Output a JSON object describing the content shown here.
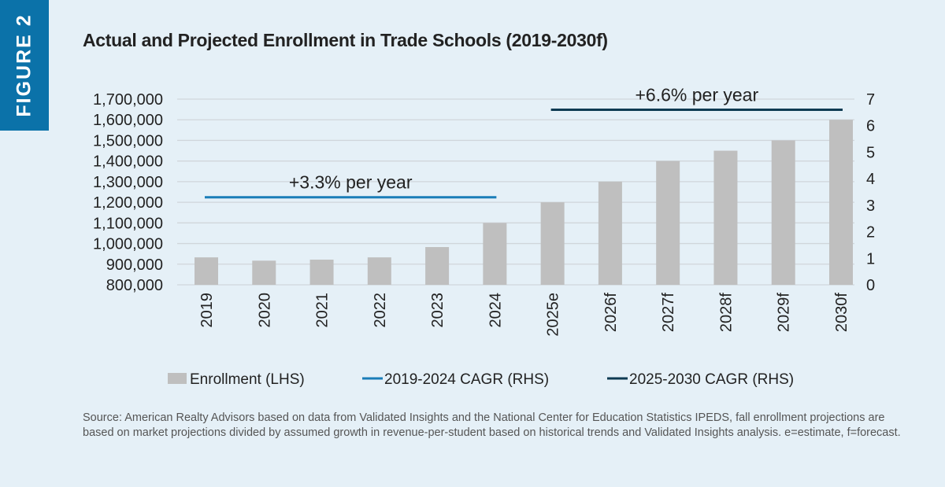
{
  "figure_label": "FIGURE 2",
  "chart_data": {
    "type": "bar",
    "title": "Actual and Projected Enrollment in Trade Schools (2019-2030f)",
    "categories": [
      "2019",
      "2020",
      "2021",
      "2022",
      "2023",
      "2024",
      "2025e",
      "2026f",
      "2027f",
      "2028f",
      "2029f",
      "2030f"
    ],
    "series": [
      {
        "name": "Enrollment (LHS)",
        "type": "bar",
        "axis": "left",
        "color": "#bfbfbf",
        "values": [
          933000,
          917000,
          922000,
          933000,
          983000,
          1100000,
          1200000,
          1300000,
          1400000,
          1450000,
          1500000,
          1600000
        ]
      },
      {
        "name": "2019-2024 CAGR (RHS)",
        "type": "line",
        "axis": "right",
        "color": "#1a7db8",
        "from": "2019",
        "to": "2024",
        "value": 3.3,
        "label": "+3.3% per year"
      },
      {
        "name": "2025-2030 CAGR (RHS)",
        "type": "line",
        "axis": "right",
        "color": "#0d3a52",
        "from": "2025e",
        "to": "2030f",
        "value": 6.6,
        "label": "+6.6% per year"
      }
    ],
    "left_axis": {
      "ylim": [
        800000,
        1700000
      ],
      "ticks": [
        "800,000",
        "900,000",
        "1,000,000",
        "1,100,000",
        "1,200,000",
        "1,300,000",
        "1,400,000",
        "1,500,000",
        "1,600,000",
        "1,700,000"
      ]
    },
    "right_axis": {
      "ylim": [
        0,
        7
      ],
      "ticks": [
        "0",
        "1",
        "2",
        "3",
        "4",
        "5",
        "6",
        "7"
      ]
    },
    "grid": true,
    "legend": "bottom"
  },
  "source": "Source: American Realty Advisors based on data from Validated Insights and the National Center for Education Statistics IPEDS, fall enrollment projections are based on market projections divided by assumed growth in revenue-per-student based on historical trends and Validated Insights analysis. e=estimate, f=forecast."
}
